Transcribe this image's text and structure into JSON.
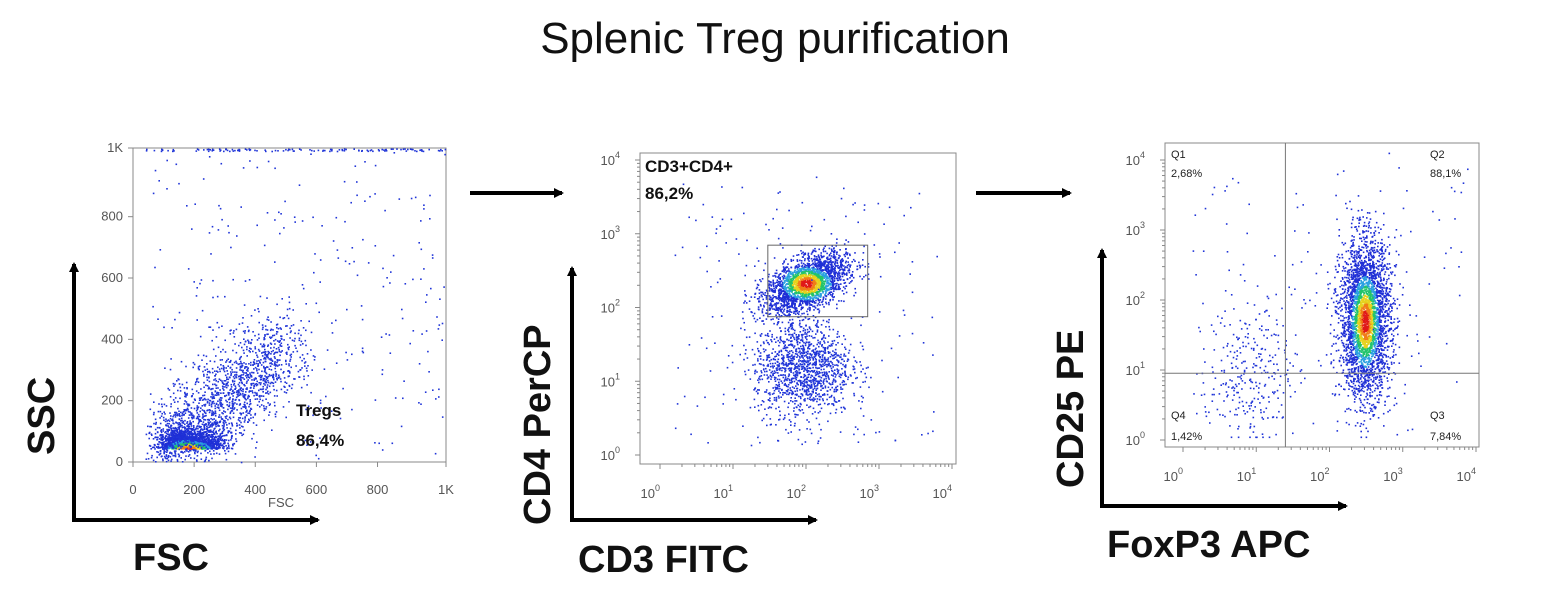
{
  "title": "Splenic Treg purification",
  "chart_data": [
    {
      "type": "scatter",
      "xlabel": "FSC",
      "ylabel": "SSC",
      "xlim": [
        0,
        1024
      ],
      "ylim": [
        0,
        1024
      ],
      "x_ticks": [
        "0",
        "200",
        "400",
        "600",
        "800",
        "1K"
      ],
      "y_ticks": [
        "0",
        "200",
        "400",
        "600",
        "800",
        "1K"
      ],
      "x_tick_values": [
        0,
        200,
        400,
        600,
        800,
        1024
      ],
      "y_tick_values": [
        0,
        200,
        400,
        600,
        800,
        1024
      ],
      "gate_label": "Tregs",
      "gate_percent": "86,4%",
      "axis_artifact_text": "FSC"
    },
    {
      "type": "scatter",
      "xlabel": "CD3 FITC",
      "ylabel": "CD4 PerCP",
      "x_scale": "log",
      "y_scale": "log",
      "xlim": [
        1,
        10000
      ],
      "ylim": [
        1,
        10000
      ],
      "ticks": [
        {
          "base": "10",
          "exp": "0",
          "value": 1
        },
        {
          "base": "10",
          "exp": "1",
          "value": 10
        },
        {
          "base": "10",
          "exp": "2",
          "value": 100
        },
        {
          "base": "10",
          "exp": "3",
          "value": 1000
        },
        {
          "base": "10",
          "exp": "4",
          "value": 10000
        }
      ],
      "gate": {
        "x_range": [
          30,
          700
        ],
        "y_range": [
          75,
          700
        ]
      },
      "gate_label": "CD3+CD4+",
      "gate_percent": "86,2%"
    },
    {
      "type": "scatter",
      "xlabel": "FoxP3 APC",
      "ylabel": "CD25 PE",
      "x_scale": "log",
      "y_scale": "log",
      "xlim": [
        1,
        10000
      ],
      "ylim": [
        1,
        10000
      ],
      "ticks": [
        {
          "base": "10",
          "exp": "0",
          "value": 1
        },
        {
          "base": "10",
          "exp": "1",
          "value": 10
        },
        {
          "base": "10",
          "exp": "2",
          "value": 100
        },
        {
          "base": "10",
          "exp": "3",
          "value": 1000
        },
        {
          "base": "10",
          "exp": "4",
          "value": 10000
        }
      ],
      "quadrant_split": {
        "x": 25,
        "y": 9
      },
      "quadrants": [
        {
          "name": "Q1",
          "percent": "2,68%"
        },
        {
          "name": "Q2",
          "percent": "88,1%"
        },
        {
          "name": "Q3",
          "percent": "7,84%"
        },
        {
          "name": "Q4",
          "percent": "1,42%"
        }
      ]
    }
  ]
}
